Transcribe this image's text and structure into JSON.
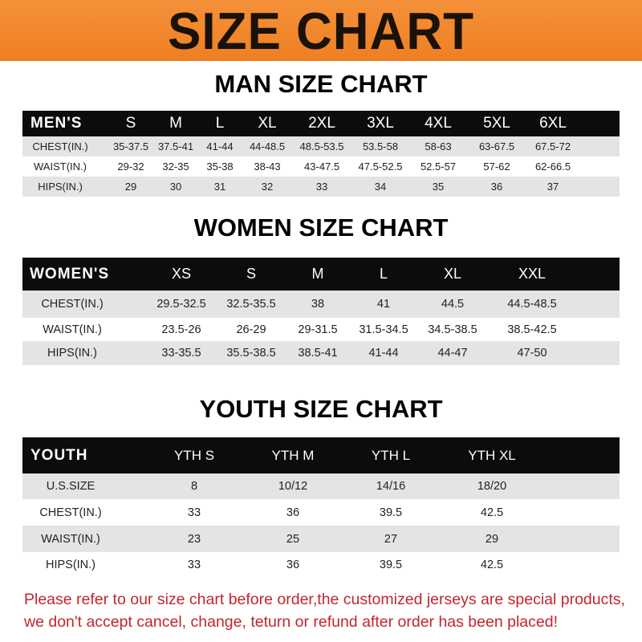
{
  "banner": {
    "title": "SIZE CHART",
    "color": "#f28a2e"
  },
  "men": {
    "title": "MAN SIZE CHART",
    "header": [
      "MEN'S",
      "S",
      "M",
      "L",
      "XL",
      "2XL",
      "3XL",
      "4XL",
      "5XL",
      "6XL"
    ],
    "rows": [
      [
        "CHEST(IN.)",
        "35-37.5",
        "37.5-41",
        "41-44",
        "44-48.5",
        "48.5-53.5",
        "53.5-58",
        "58-63",
        "63-67.5",
        "67.5-72"
      ],
      [
        "WAIST(IN.)",
        "29-32",
        "32-35",
        "35-38",
        "38-43",
        "43-47.5",
        "47.5-52.5",
        "52.5-57",
        "57-62",
        "62-66.5"
      ],
      [
        "HIPS(IN.)",
        "29",
        "30",
        "31",
        "32",
        "33",
        "34",
        "35",
        "36",
        "37"
      ]
    ]
  },
  "women": {
    "title": "WOMEN SIZE CHART",
    "header": [
      "WOMEN'S",
      "XS",
      "S",
      "M",
      "L",
      "XL",
      "XXL"
    ],
    "rows": [
      [
        "CHEST(IN.)",
        "29.5-32.5",
        "32.5-35.5",
        "38",
        "41",
        "44.5",
        "44.5-48.5"
      ],
      [
        "WAIST(IN.)",
        "23.5-26",
        "26-29",
        "29-31.5",
        "31.5-34.5",
        "34.5-38.5",
        "38.5-42.5"
      ],
      [
        "HIPS(IN.)",
        "33-35.5",
        "35.5-38.5",
        "38.5-41",
        "41-44",
        "44-47",
        "47-50"
      ]
    ]
  },
  "youth": {
    "title": "YOUTH SIZE CHART",
    "header": [
      "YOUTH",
      "YTH S",
      "YTH M",
      "YTH L",
      "YTH XL"
    ],
    "rows": [
      [
        "U.S.SIZE",
        "8",
        "10/12",
        "14/16",
        "18/20"
      ],
      [
        "CHEST(IN.)",
        "33",
        "36",
        "39.5",
        "42.5"
      ],
      [
        "WAIST(IN.)",
        "23",
        "25",
        "27",
        "29"
      ],
      [
        "HIPS(IN.)",
        "33",
        "36",
        "39.5",
        "42.5"
      ]
    ]
  },
  "notice": {
    "line1": "Please refer to our size chart before order,the customized jerseys are special products,",
    "line2": "we don't accept cancel, change, teturn or refund after order has been placed!",
    "color": "#c0272d"
  }
}
